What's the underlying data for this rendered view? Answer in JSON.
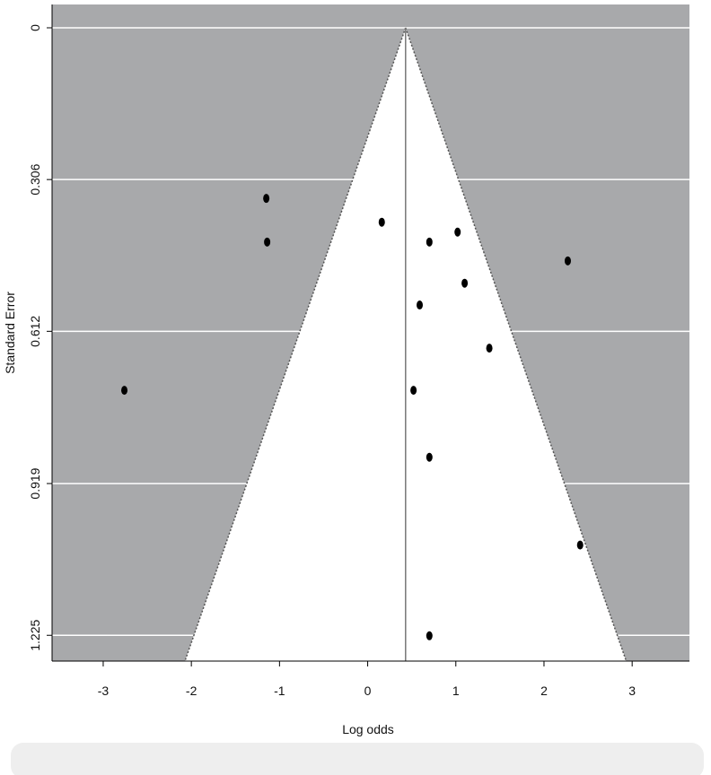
{
  "chart_data": {
    "type": "funnel",
    "xlabel": "Log odds",
    "ylabel": "Standard Error",
    "xlim": [
      -3.58,
      3.65
    ],
    "ylim": [
      -0.047,
      1.277
    ],
    "y_reversed": true,
    "xticks": [
      -3,
      -2,
      -1,
      0,
      1,
      2,
      3
    ],
    "yticks": [
      0,
      0.306,
      0.612,
      0.919,
      1.225
    ],
    "grid": true,
    "pooled_estimate": 0.43,
    "funnel_z": 1.96,
    "background_color": "#a8a9ab",
    "funnel_color": "#ffffff",
    "point_color": "#000000",
    "x": [
      -1.15,
      -1.14,
      0.16,
      0.7,
      1.02,
      2.27,
      1.1,
      0.59,
      1.38,
      -2.76,
      0.52,
      0.7,
      2.41,
      0.7
    ],
    "values": [
      0.344,
      0.432,
      0.392,
      0.432,
      0.412,
      0.47,
      0.515,
      0.559,
      0.646,
      0.731,
      0.731,
      0.866,
      1.043,
      1.226
    ]
  }
}
